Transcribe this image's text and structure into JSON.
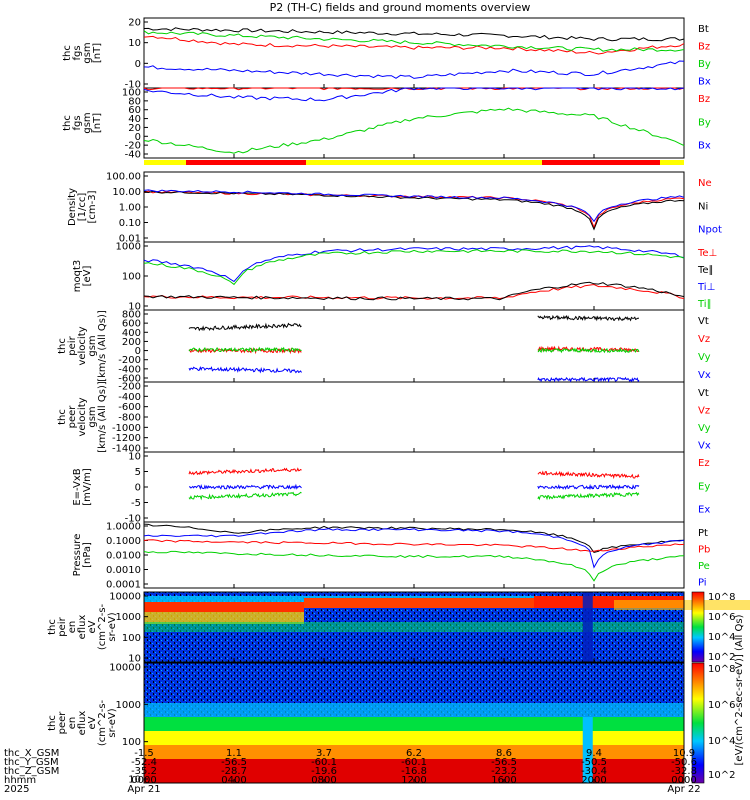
{
  "title": "P2 (TH-C) fields and ground moments overview",
  "colors": {
    "black": "#000000",
    "red": "#ff0000",
    "green": "#00d000",
    "blue": "#0000ff",
    "yellow": "#ffff00"
  },
  "panels": [
    {
      "id": "fgs_gsm",
      "ylabel": [
        "thc",
        "fgs",
        "gsm",
        "[nT]"
      ],
      "ticks": [
        "20",
        "10",
        "0",
        "-10"
      ],
      "legend": [
        {
          "text": "Bt",
          "color": "black"
        },
        {
          "text": "Bz",
          "color": "red"
        },
        {
          "text": "By",
          "color": "green"
        },
        {
          "text": "Bx",
          "color": "blue"
        }
      ]
    },
    {
      "id": "fgs_gsm_big",
      "ylabel": [
        "thc",
        "fgs",
        "gsm",
        "[nT]"
      ],
      "ticks": [
        "100",
        "80",
        "60",
        "40",
        "20",
        "0",
        "-20",
        "-40"
      ],
      "legend": [
        {
          "text": "Bz",
          "color": "red"
        },
        {
          "text": "By",
          "color": "green"
        },
        {
          "text": "Bx",
          "color": "blue"
        }
      ]
    },
    {
      "id": "density",
      "ylabel": [
        "Density",
        "[1/cc]",
        "[cm-3]"
      ],
      "ticks": [
        "100.00",
        "10.00",
        "1.00",
        "0.10",
        "0.01"
      ],
      "legend": [
        {
          "text": "Ne",
          "color": "red"
        },
        {
          "text": "Ni",
          "color": "black"
        },
        {
          "text": "Npot",
          "color": "blue"
        }
      ]
    },
    {
      "id": "temperature",
      "ylabel": [
        "moqt3",
        "[eV]"
      ],
      "ticks": [
        "1000",
        "100",
        "10"
      ],
      "legend": [
        {
          "text": "Te⊥",
          "color": "red"
        },
        {
          "text": "Te∥",
          "color": "black"
        },
        {
          "text": "Ti⊥",
          "color": "blue"
        },
        {
          "text": "Ti∥",
          "color": "green"
        }
      ]
    },
    {
      "id": "peir_velocity",
      "ylabel": [
        "thc",
        "peir",
        "velocity",
        "gsm",
        "[km/s (All Qs)]"
      ],
      "ticks": [
        "800",
        "600",
        "400",
        "200",
        "0",
        "-200",
        "-400",
        "-600"
      ],
      "legend": [
        {
          "text": "Vt",
          "color": "black"
        },
        {
          "text": "Vz",
          "color": "red"
        },
        {
          "text": "Vy",
          "color": "green"
        },
        {
          "text": "Vx",
          "color": "blue"
        }
      ]
    },
    {
      "id": "peer_velocity",
      "ylabel": [
        "thc",
        "peer",
        "velocity",
        "gsm",
        "[km/s (All Qs)]"
      ],
      "ticks": [
        "-200",
        "-400",
        "-600",
        "-800",
        "-1000",
        "-1200",
        "-1400"
      ],
      "legend": [
        {
          "text": "Vt",
          "color": "black"
        },
        {
          "text": "Vz",
          "color": "red"
        },
        {
          "text": "Vy",
          "color": "green"
        },
        {
          "text": "Vx",
          "color": "blue"
        }
      ]
    },
    {
      "id": "efield",
      "ylabel": [
        "E=-VxB",
        "[mV/m]"
      ],
      "ticks": [
        "10",
        "5",
        "0",
        "-5",
        "-10"
      ],
      "legend": [
        {
          "text": "Ez",
          "color": "red"
        },
        {
          "text": "Ey",
          "color": "green"
        },
        {
          "text": "Ex",
          "color": "blue"
        }
      ]
    },
    {
      "id": "pressure",
      "ylabel": [
        "Pressure",
        "[nPa]"
      ],
      "ticks": [
        "1.0000",
        "0.1000",
        "0.0100",
        "0.0010",
        "0.0001"
      ],
      "legend": [
        {
          "text": "Pt",
          "color": "black"
        },
        {
          "text": "Pb",
          "color": "red"
        },
        {
          "text": "Pe",
          "color": "green"
        },
        {
          "text": "Pi",
          "color": "blue"
        }
      ]
    },
    {
      "id": "peir_eflux",
      "ylabel": [
        "thc",
        "peir",
        "en",
        "eflux",
        "eV",
        "(cm^2-s-",
        "sr-eV)"
      ],
      "ticks": [
        "10000",
        "1000",
        "100",
        "10"
      ],
      "legend": []
    },
    {
      "id": "peer_eflux",
      "ylabel": [
        "thc",
        "peer",
        "en",
        "eflux",
        "eV",
        "(cm^2-s-",
        "sr-eV)"
      ],
      "ticks": [
        "10000",
        "1000",
        "100",
        "10"
      ],
      "legend": []
    }
  ],
  "colorbar": {
    "label": "[eV/(cm^2-sec-sr-eV)] (All Qs)",
    "ticks_top": [
      "10^8",
      "10^6",
      "10^4",
      "10^2"
    ],
    "ticks_bottom": [
      "10^8",
      "10^6",
      "10^4",
      "10^2"
    ]
  },
  "bottom_axis": {
    "row_labels": [
      "thc_X_GSM",
      "thc_Y_GSM",
      "thc_Z_GSM",
      "hhmm",
      "2025"
    ],
    "columns": [
      [
        "-1.5",
        "-52.4",
        "-35.2",
        "0000",
        "Apr 21"
      ],
      [
        "1.1",
        "-56.5",
        "-28.7",
        "0400",
        ""
      ],
      [
        "3.7",
        "-60.1",
        "-19.6",
        "0800",
        ""
      ],
      [
        "6.2",
        "-60.1",
        "-16.8",
        "1200",
        ""
      ],
      [
        "8.6",
        "-56.5",
        "-23.2",
        "1600",
        ""
      ],
      [
        "9.4",
        "-50.5",
        "-30.4",
        "2000",
        ""
      ],
      [
        "10.9",
        "-50.6",
        "-32.8",
        "0000",
        "Apr 22"
      ]
    ]
  },
  "chart_data": [
    {
      "type": "line",
      "title": "P2 (TH-C) fields and ground moments overview",
      "ylabel": "thc fgs gsm [nT]",
      "ylim": [
        -20,
        20
      ],
      "x": [
        "0000",
        "0400",
        "0800",
        "1200",
        "1600",
        "2000",
        "0000"
      ],
      "series": [
        {
          "name": "Bt",
          "values": [
            14,
            13,
            12,
            11,
            10,
            8,
            8
          ]
        },
        {
          "name": "Bz",
          "values": [
            10,
            5,
            4,
            3,
            3,
            0,
            5
          ]
        },
        {
          "name": "By",
          "values": [
            12,
            10,
            8,
            6,
            4,
            2,
            2
          ]
        },
        {
          "name": "Bx",
          "values": [
            -8,
            -10,
            -12,
            -14,
            -10,
            -12,
            -5
          ]
        }
      ]
    },
    {
      "type": "line",
      "ylabel": "thc fgs gsm [nT]",
      "ylim": [
        -50,
        100
      ],
      "x": [
        "0000",
        "0400",
        "0800",
        "1200",
        "1600",
        "2000",
        "0000"
      ],
      "series": [
        {
          "name": "Bz",
          "values": [
            100,
            100,
            100,
            100,
            100,
            100,
            100
          ]
        },
        {
          "name": "By",
          "values": [
            -10,
            -38,
            -10,
            35,
            55,
            40,
            -20
          ]
        },
        {
          "name": "Bx",
          "values": [
            95,
            80,
            75,
            100,
            100,
            100,
            100
          ]
        }
      ]
    },
    {
      "type": "line",
      "ylabel": "Density [1/cc]",
      "yscale": "log",
      "ylim": [
        0.005,
        200
      ],
      "x": [
        "0000",
        "0400",
        "0800",
        "1200",
        "1600",
        "2000",
        "0000"
      ],
      "series": [
        {
          "name": "Ne",
          "values": [
            10,
            8,
            6,
            5,
            4,
            0.05,
            4
          ]
        },
        {
          "name": "Ni",
          "values": [
            10,
            8,
            6,
            4,
            3,
            0.03,
            3
          ]
        },
        {
          "name": "Npot",
          "values": [
            12,
            10,
            7,
            5,
            4,
            0.1,
            5
          ]
        }
      ]
    },
    {
      "type": "line",
      "ylabel": "moqt3 [eV]",
      "yscale": "log",
      "ylim": [
        5,
        5000
      ],
      "x": [
        "0000",
        "0400",
        "0800",
        "1200",
        "1600",
        "2000",
        "0000"
      ],
      "series": [
        {
          "name": "Te⊥",
          "values": [
            20,
            18,
            18,
            17,
            17,
            60,
            18
          ]
        },
        {
          "name": "Te∥",
          "values": [
            20,
            18,
            17,
            16,
            16,
            80,
            17
          ]
        },
        {
          "name": "Ti⊥",
          "values": [
            800,
            80,
            2000,
            2500,
            2500,
            3000,
            1200
          ]
        },
        {
          "name": "Ti∥",
          "values": [
            600,
            60,
            1500,
            2000,
            2000,
            2000,
            1000
          ]
        }
      ]
    },
    {
      "type": "line",
      "ylabel": "thc peir velocity gsm [km/s (All Qs)]",
      "ylim": [
        -650,
        800
      ],
      "x": [
        "0400",
        "0800",
        "2000",
        "2200"
      ],
      "series": [
        {
          "name": "Vt",
          "values": [
            420,
            500,
            650,
            620
          ]
        },
        {
          "name": "Vz",
          "values": [
            -20,
            -20,
            20,
            0
          ]
        },
        {
          "name": "Vy",
          "values": [
            0,
            0,
            -10,
            -20
          ]
        },
        {
          "name": "Vx",
          "values": [
            -380,
            -430,
            -600,
            -600
          ]
        }
      ]
    },
    {
      "type": "line",
      "ylabel": "thc peer velocity gsm [km/s (All Qs)]",
      "ylim": [
        -1400,
        -200
      ],
      "series": []
    },
    {
      "type": "line",
      "ylabel": "E=-VxB [mV/m]",
      "ylim": [
        -10,
        10
      ],
      "x": [
        "0400",
        "0800",
        "1700",
        "2200"
      ],
      "series": [
        {
          "name": "Ez",
          "values": [
            4,
            5,
            4,
            3
          ]
        },
        {
          "name": "Ey",
          "values": [
            -3,
            -2,
            -3,
            -2
          ]
        },
        {
          "name": "Ex",
          "values": [
            0,
            0,
            0,
            0
          ]
        }
      ]
    },
    {
      "type": "line",
      "ylabel": "Pressure [nPa]",
      "yscale": "log",
      "ylim": [
        0.0001,
        1.5
      ],
      "x": [
        "0000",
        "0400",
        "0800",
        "1200",
        "1600",
        "2000",
        "0000"
      ],
      "series": [
        {
          "name": "Pt",
          "values": [
            1.0,
            0.3,
            0.7,
            0.6,
            0.5,
            0.02,
            0.1
          ]
        },
        {
          "name": "Pb",
          "values": [
            0.1,
            0.08,
            0.07,
            0.06,
            0.05,
            0.02,
            0.06
          ]
        },
        {
          "name": "Pe",
          "values": [
            0.02,
            0.015,
            0.012,
            0.01,
            0.01,
            0.0003,
            0.01
          ]
        },
        {
          "name": "Pi",
          "values": [
            0.2,
            0.2,
            0.5,
            0.5,
            0.4,
            0.002,
            0.1
          ]
        }
      ]
    },
    {
      "type": "heatmap",
      "ylabel": "thc peir en eflux eV/(cm^2-s-sr-eV)",
      "yscale": "log",
      "ylim": [
        5,
        30000
      ]
    },
    {
      "type": "heatmap",
      "ylabel": "thc peer en eflux eV/(cm^2-s-sr-eV)",
      "yscale": "log",
      "ylim": [
        5,
        30000
      ]
    }
  ]
}
